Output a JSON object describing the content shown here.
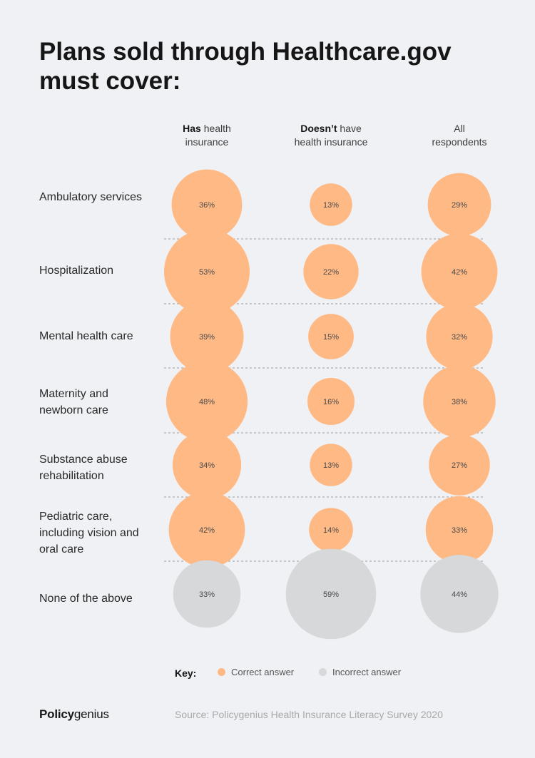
{
  "title": "Plans sold through Healthcare.gov must cover:",
  "headers": [
    {
      "bold": "Has",
      "rest": " health",
      "line2": "insurance"
    },
    {
      "bold": "Doesn’t",
      "rest": " have",
      "line2": "health insurance"
    },
    {
      "bold": "",
      "rest": "All",
      "line2": "respondents"
    }
  ],
  "rows": [
    {
      "label": "Ambulatory services"
    },
    {
      "label": "Hospitalization"
    },
    {
      "label": "Mental health care"
    },
    {
      "label": "Maternity and newborn care"
    },
    {
      "label": "Substance abuse rehabilitation"
    },
    {
      "label": "Pediatric care, including vision and oral care"
    },
    {
      "label": "None of the above"
    }
  ],
  "legend": {
    "key": "Key:",
    "correct": "Correct answer",
    "incorrect": "Incorrect answer"
  },
  "colors": {
    "correct": "#ffb985",
    "incorrect": "#d6d8da",
    "divider": "#9a9a9a"
  },
  "brand": {
    "bold": "Policy",
    "rest": "genius"
  },
  "source": "Source: Policygenius Health Insurance Literacy Survey 2020",
  "chart_data": {
    "type": "bubble-matrix",
    "title": "Plans sold through Healthcare.gov must cover:",
    "columns": [
      "Has health insurance",
      "Doesn’t have health insurance",
      "All respondents"
    ],
    "categories": [
      "Ambulatory services",
      "Hospitalization",
      "Mental health care",
      "Maternity and newborn care",
      "Substance abuse rehabilitation",
      "Pediatric care, including vision and oral care",
      "None of the above"
    ],
    "series": [
      {
        "name": "Has health insurance",
        "values": [
          36,
          53,
          39,
          48,
          34,
          42,
          33
        ]
      },
      {
        "name": "Doesn’t have health insurance",
        "values": [
          13,
          22,
          15,
          16,
          13,
          14,
          59
        ]
      },
      {
        "name": "All respondents",
        "values": [
          29,
          42,
          32,
          38,
          27,
          33,
          44
        ]
      }
    ],
    "correct": [
      true,
      true,
      true,
      true,
      true,
      true,
      false
    ],
    "unit": "%"
  }
}
